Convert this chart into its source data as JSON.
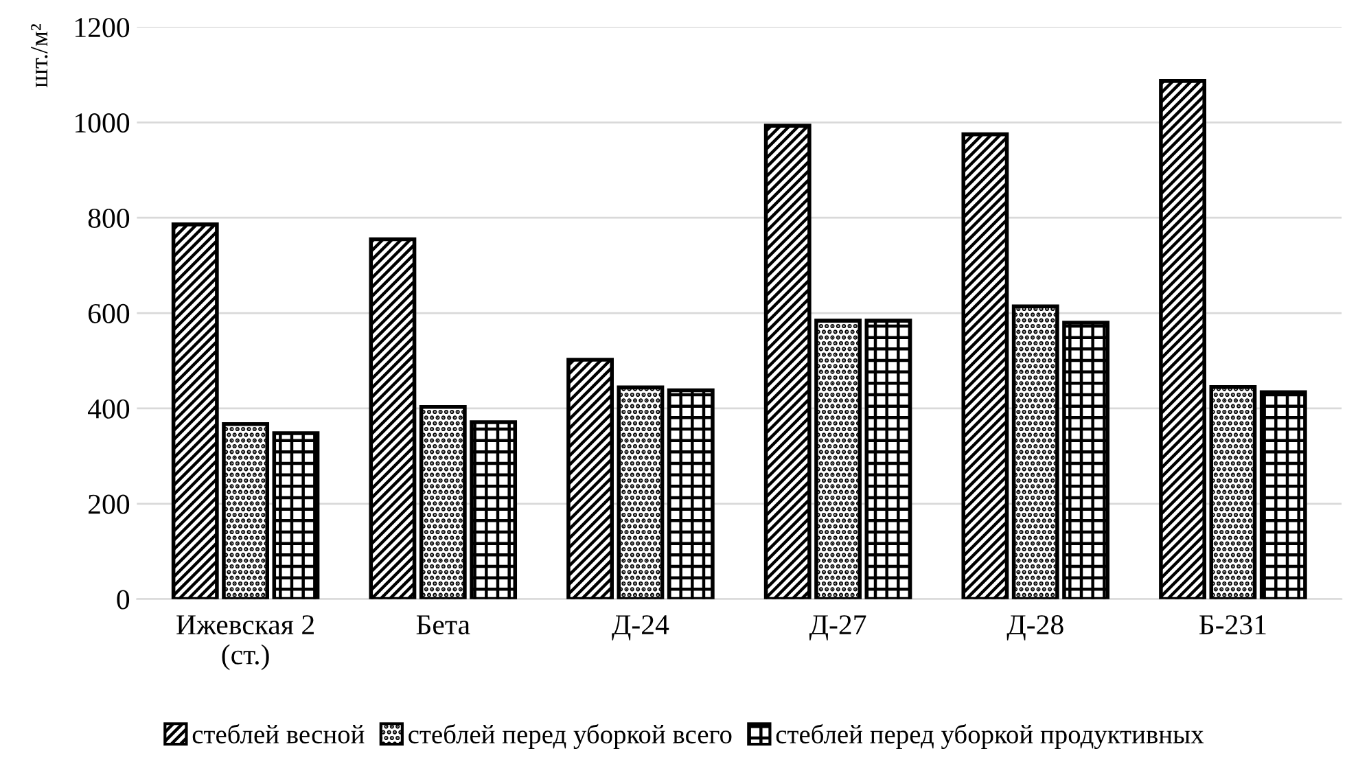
{
  "chart_data": {
    "type": "bar",
    "ylabel": "шт./м²",
    "categories": [
      "Ижевская 2\n(ст.)",
      "Бета",
      "Д-24",
      "Д-27",
      "Д-28",
      "Б-231"
    ],
    "series": [
      {
        "name": "стеблей весной",
        "color": "#000000",
        "values": [
          786,
          755,
          502,
          993,
          975,
          1087
        ]
      },
      {
        "name": "стеблей перед уборкой всего",
        "color": "#000000",
        "values": [
          367,
          403,
          444,
          584,
          614,
          445
        ]
      },
      {
        "name": "стеблей перед уборкой продуктивных",
        "color": "#000000",
        "values": [
          348,
          371,
          438,
          584,
          580,
          434
        ]
      }
    ],
    "ylim": [
      0,
      1200
    ],
    "yticks": [
      0,
      200,
      400,
      600,
      800,
      1000,
      1200
    ],
    "grid": "y",
    "legend": "bottom"
  }
}
